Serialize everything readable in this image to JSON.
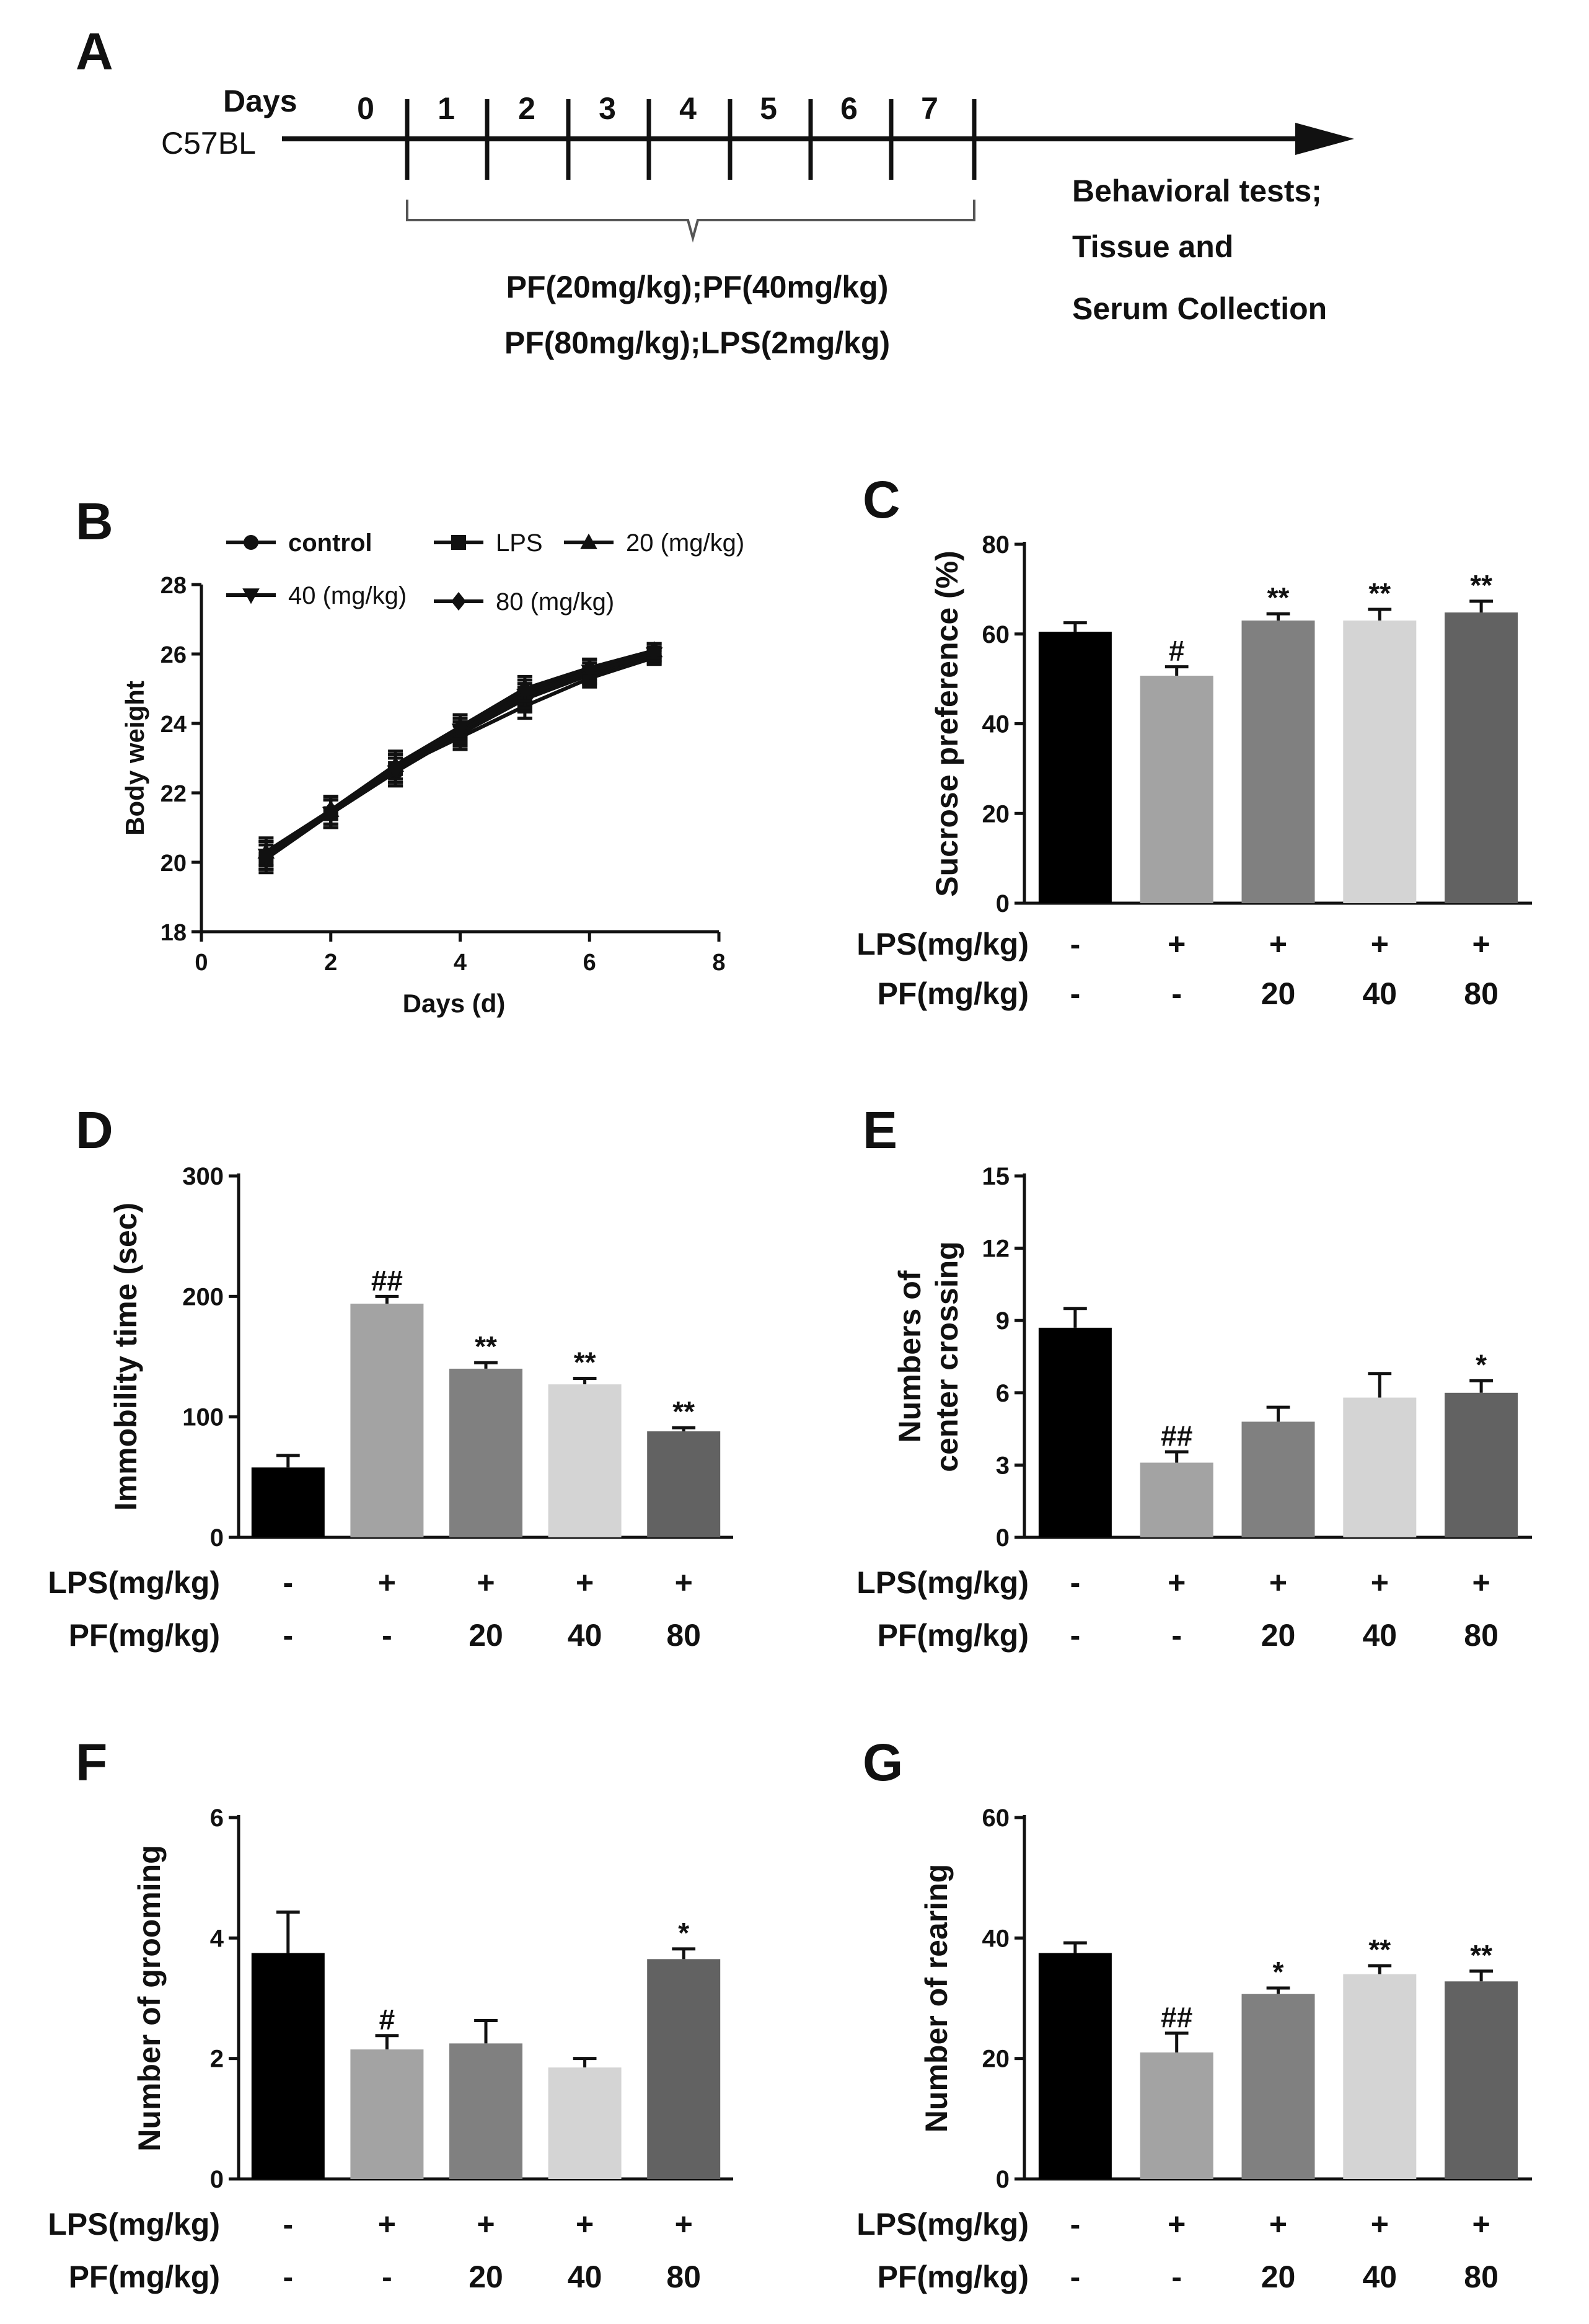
{
  "timeline": {
    "label": "A",
    "strain": "C57BL",
    "days_label": "Days",
    "days": [
      "0",
      "1",
      "2",
      "3",
      "4",
      "5",
      "6",
      "7"
    ],
    "treatment_lines": [
      "PF(20mg/kg);PF(40mg/kg)",
      "PF(80mg/kg);LPS(2mg/kg)"
    ],
    "outcome_lines": [
      "Behavioral tests;",
      "Tissue and",
      "Serum Collection"
    ]
  },
  "chart_data": [
    {
      "id": "B",
      "type": "line",
      "panel_label": "B",
      "xlabel": "Days (d)",
      "ylabel": "Body weight",
      "xlim": [
        0,
        8
      ],
      "ylim": [
        18,
        28
      ],
      "xticks": [
        0,
        2,
        4,
        6,
        8
      ],
      "yticks": [
        18,
        20,
        22,
        24,
        26,
        28
      ],
      "x": [
        1,
        2,
        3,
        4,
        5,
        6,
        7
      ],
      "series": [
        {
          "name": "control",
          "marker": "circle",
          "bold": true,
          "values": [
            20.2,
            21.4,
            22.6,
            23.7,
            24.7,
            25.4,
            26.0
          ],
          "errors": [
            0.4,
            0.4,
            0.4,
            0.35,
            0.35,
            0.25,
            0.2
          ]
        },
        {
          "name": "LPS",
          "marker": "square",
          "bold": false,
          "values": [
            20.1,
            21.4,
            22.7,
            23.6,
            24.5,
            25.3,
            25.9
          ],
          "errors": [
            0.4,
            0.4,
            0.4,
            0.35,
            0.35,
            0.25,
            0.2
          ]
        },
        {
          "name": "20 (mg/kg)",
          "marker": "triangle-up",
          "bold": false,
          "values": [
            20.3,
            21.5,
            22.8,
            23.9,
            24.9,
            25.6,
            26.1
          ],
          "errors": [
            0.4,
            0.4,
            0.4,
            0.35,
            0.35,
            0.25,
            0.2
          ]
        },
        {
          "name": "40 (mg/kg)",
          "marker": "triangle-down",
          "bold": false,
          "values": [
            20.2,
            21.4,
            22.6,
            23.8,
            24.8,
            25.5,
            26.0
          ],
          "errors": [
            0.4,
            0.4,
            0.4,
            0.35,
            0.35,
            0.25,
            0.2
          ]
        },
        {
          "name": "80 (mg/kg)",
          "marker": "diamond",
          "bold": false,
          "values": [
            20.2,
            21.5,
            22.7,
            23.9,
            25.0,
            25.6,
            26.1
          ],
          "errors": [
            0.4,
            0.4,
            0.4,
            0.35,
            0.35,
            0.25,
            0.2
          ]
        }
      ]
    },
    {
      "id": "C",
      "type": "bar",
      "panel_label": "C",
      "ylabel": "Sucrose preference (%)",
      "ylim": [
        0,
        80
      ],
      "yticks": [
        0,
        20,
        40,
        60,
        80
      ],
      "values": [
        60.5,
        50.7,
        63.0,
        63.0,
        64.8
      ],
      "errors": [
        2.0,
        2.0,
        1.5,
        2.5,
        2.5
      ],
      "significance": [
        "",
        "#",
        "**",
        "**",
        "**"
      ],
      "colors": [
        "#000000",
        "#a3a3a3",
        "#808080",
        "#d4d4d4",
        "#626262"
      ],
      "rows": [
        {
          "label": "LPS(mg/kg)",
          "values": [
            "-",
            "+",
            "+",
            "+",
            "+"
          ]
        },
        {
          "label": "PF(mg/kg)",
          "values": [
            "-",
            "-",
            "20",
            "40",
            "80"
          ]
        }
      ]
    },
    {
      "id": "D",
      "type": "bar",
      "panel_label": "D",
      "ylabel": "Immobility time (sec)",
      "ylim": [
        0,
        300
      ],
      "yticks": [
        0,
        100,
        200,
        300
      ],
      "values": [
        58,
        194,
        140,
        127,
        88
      ],
      "errors": [
        10,
        6,
        5,
        5,
        3
      ],
      "significance": [
        "",
        "##",
        "**",
        "**",
        "**"
      ],
      "colors": [
        "#000000",
        "#a3a3a3",
        "#808080",
        "#d4d4d4",
        "#626262"
      ],
      "rows": [
        {
          "label": "LPS(mg/kg)",
          "values": [
            "-",
            "+",
            "+",
            "+",
            "+"
          ]
        },
        {
          "label": "PF(mg/kg)",
          "values": [
            "-",
            "-",
            "20",
            "40",
            "80"
          ]
        }
      ]
    },
    {
      "id": "E",
      "type": "bar",
      "panel_label": "E",
      "ylabel": "Numbers of center crossing",
      "ylabel_lines": [
        "Numbers of",
        "center crossing"
      ],
      "ylim": [
        0,
        15
      ],
      "yticks": [
        0,
        3,
        6,
        9,
        12,
        15
      ],
      "values": [
        8.7,
        3.1,
        4.8,
        5.8,
        6.0
      ],
      "errors": [
        0.8,
        0.45,
        0.6,
        1.0,
        0.5
      ],
      "significance": [
        "",
        "##",
        "",
        "",
        "*"
      ],
      "colors": [
        "#000000",
        "#a3a3a3",
        "#808080",
        "#d4d4d4",
        "#626262"
      ],
      "rows": [
        {
          "label": "LPS(mg/kg)",
          "values": [
            "-",
            "+",
            "+",
            "+",
            "+"
          ]
        },
        {
          "label": "PF(mg/kg)",
          "values": [
            "-",
            "-",
            "20",
            "40",
            "80"
          ]
        }
      ]
    },
    {
      "id": "F",
      "type": "bar",
      "panel_label": "F",
      "ylabel": "Number of grooming",
      "ylim": [
        0,
        6
      ],
      "yticks": [
        0,
        2,
        4,
        6
      ],
      "values": [
        3.75,
        2.15,
        2.25,
        1.85,
        3.65
      ],
      "errors": [
        0.68,
        0.23,
        0.38,
        0.15,
        0.17
      ],
      "significance": [
        "",
        "#",
        "",
        "",
        "*"
      ],
      "colors": [
        "#000000",
        "#a3a3a3",
        "#808080",
        "#d4d4d4",
        "#626262"
      ],
      "rows": [
        {
          "label": "LPS(mg/kg)",
          "values": [
            "-",
            "+",
            "+",
            "+",
            "+"
          ]
        },
        {
          "label": "PF(mg/kg)",
          "values": [
            "-",
            "-",
            "20",
            "40",
            "80"
          ]
        }
      ]
    },
    {
      "id": "G",
      "type": "bar",
      "panel_label": "G",
      "ylabel": "Number of rearing",
      "ylim": [
        0,
        60
      ],
      "yticks": [
        0,
        20,
        40,
        60
      ],
      "values": [
        37.5,
        21.0,
        30.7,
        34.0,
        32.8
      ],
      "errors": [
        1.7,
        3.2,
        1.0,
        1.4,
        1.7
      ],
      "significance": [
        "",
        "##",
        "*",
        "**",
        "**"
      ],
      "colors": [
        "#000000",
        "#a3a3a3",
        "#808080",
        "#d4d4d4",
        "#626262"
      ],
      "rows": [
        {
          "label": "LPS(mg/kg)",
          "values": [
            "-",
            "+",
            "+",
            "+",
            "+"
          ]
        },
        {
          "label": "PF(mg/kg)",
          "values": [
            "-",
            "-",
            "20",
            "40",
            "80"
          ]
        }
      ]
    }
  ]
}
